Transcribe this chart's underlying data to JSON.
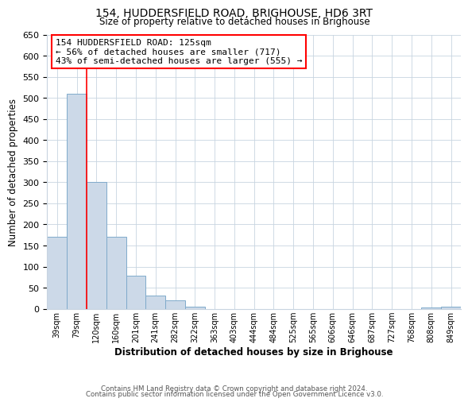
{
  "title": "154, HUDDERSFIELD ROAD, BRIGHOUSE, HD6 3RT",
  "subtitle": "Size of property relative to detached houses in Brighouse",
  "xlabel": "Distribution of detached houses by size in Brighouse",
  "ylabel": "Number of detached properties",
  "bar_labels": [
    "39sqm",
    "79sqm",
    "120sqm",
    "160sqm",
    "201sqm",
    "241sqm",
    "282sqm",
    "322sqm",
    "363sqm",
    "403sqm",
    "444sqm",
    "484sqm",
    "525sqm",
    "565sqm",
    "606sqm",
    "646sqm",
    "687sqm",
    "727sqm",
    "768sqm",
    "808sqm",
    "849sqm"
  ],
  "bar_values": [
    170,
    510,
    300,
    170,
    78,
    32,
    20,
    5,
    0,
    0,
    0,
    0,
    0,
    0,
    0,
    0,
    0,
    0,
    0,
    3,
    5
  ],
  "bar_color": "#ccd9e8",
  "bar_edge_color": "#7faacb",
  "ylim": [
    0,
    650
  ],
  "yticks": [
    0,
    50,
    100,
    150,
    200,
    250,
    300,
    350,
    400,
    450,
    500,
    550,
    600,
    650
  ],
  "redline_x": 1.5,
  "annotation_title": "154 HUDDERSFIELD ROAD: 125sqm",
  "annotation_line1": "← 56% of detached houses are smaller (717)",
  "annotation_line2": "43% of semi-detached houses are larger (555) →",
  "footer1": "Contains HM Land Registry data © Crown copyright and database right 2024.",
  "footer2": "Contains public sector information licensed under the Open Government Licence v3.0.",
  "background_color": "#ffffff",
  "grid_color": "#c8d4e0"
}
